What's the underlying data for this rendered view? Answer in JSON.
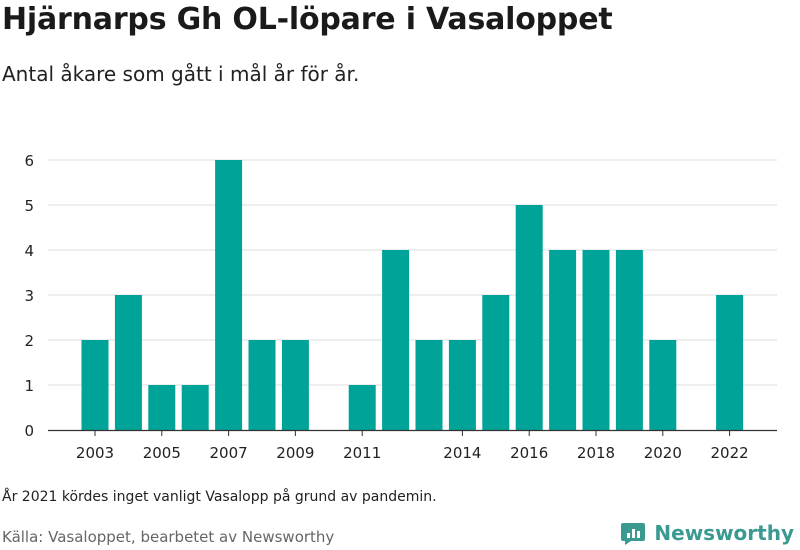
{
  "title": "Hjärnarps Gh OL-löpare i Vasaloppet",
  "subtitle": "Antal åkare som gått i mål år för år.",
  "note": "År 2021 kördes inget vanligt Vasalopp på grund av pandemin.",
  "source": "Källa: Vasaloppet, bearbetet av Newsworthy",
  "brand": {
    "name": "Newsworthy",
    "icon": "newsworthy-logo-icon",
    "color": "#3a9a91"
  },
  "colors": {
    "bar": "#00a398",
    "grid": "#dddddd",
    "axis": "#333333"
  },
  "chart_data": {
    "type": "bar",
    "title": "",
    "xlabel": "",
    "ylabel": "",
    "categories": [
      "2003",
      "2004",
      "2005",
      "2006",
      "2007",
      "2008",
      "2009",
      "2010",
      "2011",
      "2012",
      "2013",
      "2014",
      "2015",
      "2016",
      "2017",
      "2018",
      "2019",
      "2020",
      "2021",
      "2022"
    ],
    "x_tick_labels": [
      "2003",
      "2005",
      "2007",
      "2009",
      "2011",
      "2014",
      "2016",
      "2018",
      "2020",
      "2022"
    ],
    "values": [
      2,
      3,
      1,
      1,
      6,
      2,
      2,
      null,
      1,
      4,
      2,
      2,
      3,
      5,
      4,
      4,
      4,
      2,
      null,
      3
    ],
    "y_ticks": [
      0,
      1,
      2,
      3,
      4,
      5,
      6
    ],
    "ylim": [
      0,
      6
    ],
    "grid": true,
    "legend": false
  }
}
